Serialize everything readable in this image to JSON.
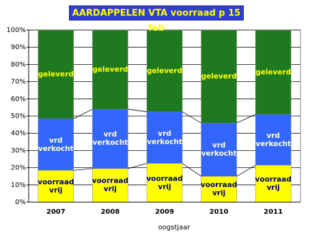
{
  "chart_data": {
    "type": "stacked_bar_100",
    "title": "AARDAPPELEN VTA voorraad p 15 feb",
    "x_label": "oogstjaar",
    "categories": [
      "2007",
      "2008",
      "2009",
      "2010",
      "2011"
    ],
    "series": [
      {
        "name": "voorraad vrij",
        "color": "#ffff00",
        "label_color": "#000080",
        "values": [
          18.5,
          19.5,
          22.5,
          15,
          21.5
        ]
      },
      {
        "name": "vrd verkocht",
        "color": "#3366ff",
        "label_color": "#ffffcc",
        "values": [
          30,
          34.5,
          30,
          31,
          29.5
        ]
      },
      {
        "name": "geleverd",
        "color": "#1f7a1f",
        "label_color": "#ffff00",
        "values": [
          51.5,
          46,
          47.5,
          54,
          49
        ]
      }
    ],
    "ylim": [
      0,
      100
    ],
    "yticks": [
      {
        "value": 0,
        "label": "0%"
      },
      {
        "value": 10,
        "label": "10%"
      },
      {
        "value": 20,
        "label": "20%"
      },
      {
        "value": 30,
        "label": "30%"
      },
      {
        "value": 40,
        "label": "40%"
      },
      {
        "value": 50,
        "label": "50%"
      },
      {
        "value": 60,
        "label": "60%"
      },
      {
        "value": 70,
        "label": "70%"
      },
      {
        "value": 80,
        "label": "80%"
      },
      {
        "value": 90,
        "label": "90%"
      },
      {
        "value": 100,
        "label": "100%"
      }
    ],
    "grid": true
  }
}
